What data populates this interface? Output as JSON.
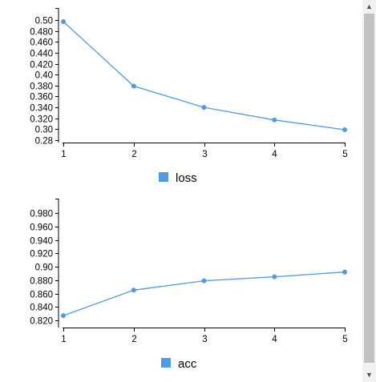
{
  "chart_data": [
    {
      "type": "line",
      "x": [
        1,
        2,
        3,
        4,
        5
      ],
      "series": [
        {
          "name": "loss",
          "values": [
            0.497,
            0.379,
            0.34,
            0.317,
            0.299
          ]
        }
      ],
      "ylim": [
        0.28,
        0.51
      ],
      "yticks": [
        "0.50",
        "0.480",
        "0.460",
        "0.440",
        "0.420",
        "0.40",
        "0.380",
        "0.360",
        "0.340",
        "0.320",
        "0.30",
        "0.28"
      ],
      "ytick_values": [
        0.5,
        0.48,
        0.46,
        0.44,
        0.42,
        0.4,
        0.38,
        0.36,
        0.34,
        0.32,
        0.3,
        0.28
      ],
      "xticks": [
        "1",
        "2",
        "3",
        "4",
        "5"
      ],
      "legend": "bottom-center",
      "grid": false,
      "color": "#4c9be8"
    },
    {
      "type": "line",
      "x": [
        1,
        2,
        3,
        4,
        5
      ],
      "series": [
        {
          "name": "acc",
          "values": [
            0.827,
            0.865,
            0.879,
            0.885,
            0.892
          ]
        }
      ],
      "ylim": [
        0.81,
        0.995
      ],
      "yticks": [
        "0.980",
        "0.960",
        "0.940",
        "0.920",
        "0.90",
        "0.880",
        "0.860",
        "0.840",
        "0.820"
      ],
      "ytick_values": [
        0.98,
        0.96,
        0.94,
        0.92,
        0.9,
        0.88,
        0.86,
        0.84,
        0.82
      ],
      "xticks": [
        "1",
        "2",
        "3",
        "4",
        "5"
      ],
      "legend": "bottom-center",
      "grid": false,
      "color": "#4c9be8"
    }
  ],
  "scrollbar": {
    "up_icon": "triangle-up-icon",
    "down_icon": "triangle-down-icon"
  }
}
